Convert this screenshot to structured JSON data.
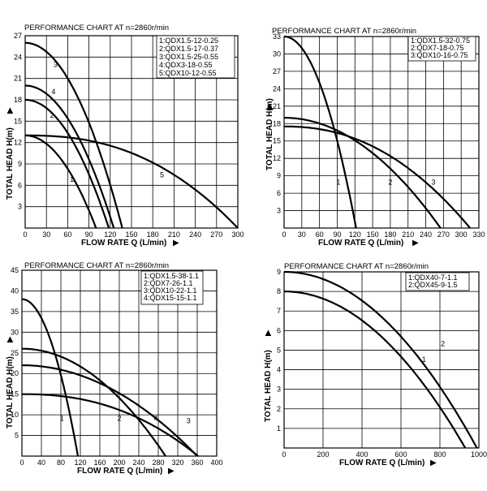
{
  "chart_data": [
    {
      "type": "line",
      "title": "PERFORMANCE CHART AT n=2860r/min",
      "xlabel": "FLOW RATE Q (L/min)",
      "ylabel": "TOTAL HEAD H(m)",
      "xlim": [
        0,
        300
      ],
      "ylim": [
        0,
        27
      ],
      "xticks": [
        0,
        30,
        60,
        90,
        120,
        150,
        180,
        210,
        240,
        270,
        300
      ],
      "yticks": [
        3,
        6,
        9,
        12,
        15,
        18,
        21,
        24,
        27
      ],
      "xtick_labels": [
        "0",
        "30",
        "60",
        "90",
        "120",
        "150",
        "180",
        "210",
        "240",
        "270",
        "300"
      ],
      "ytick_labels": [
        "3",
        "6",
        "9",
        "12",
        "15",
        "18",
        "21",
        "24",
        "27"
      ],
      "legend": [
        "1:QDX1.5-12-0.25",
        "2:QDX1.5-17-0.37",
        "3:QDX1.5-25-0.55",
        "4:QDX3-18-0.55",
        "5:QDX10-12-0.55"
      ],
      "series": [
        {
          "name": "1",
          "shutoff": 13,
          "qmax": 100,
          "exp": 2.0,
          "label_q": 66,
          "label_h": 6.5
        },
        {
          "name": "2",
          "shutoff": 18,
          "qmax": 118,
          "exp": 2.0,
          "label_q": 38,
          "label_h": 15.5
        },
        {
          "name": "3",
          "shutoff": 26,
          "qmax": 137,
          "exp": 2.0,
          "label_q": 43,
          "label_h": 22.6
        },
        {
          "name": "4",
          "shutoff": 20,
          "qmax": 125,
          "exp": 2.0,
          "label_q": 40,
          "label_h": 18.8
        },
        {
          "name": "5",
          "shutoff": 13,
          "qmax": 300,
          "exp": 2.4,
          "label_q": 193,
          "label_h": 7.1
        }
      ]
    },
    {
      "type": "line",
      "title": "PERFORMANCE CHART AT n=2860r/min",
      "xlabel": "FLOW RATE Q (L/min)",
      "ylabel": "TOTAL HEAD H(m)",
      "xlim": [
        0,
        330
      ],
      "ylim": [
        0,
        33
      ],
      "xticks": [
        0,
        30,
        60,
        90,
        120,
        150,
        180,
        210,
        240,
        270,
        300,
        330
      ],
      "yticks": [
        3,
        6,
        9,
        12,
        15,
        18,
        21,
        24,
        27,
        30,
        33
      ],
      "xtick_labels": [
        "0",
        "30",
        "60",
        "90",
        "120",
        "150",
        "180",
        "210",
        "240",
        "270",
        "300",
        "330"
      ],
      "ytick_labels": [
        "3",
        "6",
        "9",
        "12",
        "15",
        "18",
        "21",
        "24",
        "27",
        "30",
        "33"
      ],
      "legend": [
        "1:QDX1.5-32-0.75",
        "2:QDX7-18-0.75",
        "3:QDX10-16-0.75"
      ],
      "series": [
        {
          "name": "1",
          "shutoff": 33,
          "qmax": 122,
          "exp": 2.0,
          "label_q": 92,
          "label_h": 7.5
        },
        {
          "name": "2",
          "shutoff": 19,
          "qmax": 265,
          "exp": 2.0,
          "label_q": 180,
          "label_h": 7.5
        },
        {
          "name": "3",
          "shutoff": 17.5,
          "qmax": 315,
          "exp": 2.2,
          "label_q": 253,
          "label_h": 7.5
        }
      ]
    },
    {
      "type": "line",
      "title": "PERFORMANCE CHART AT n=2860r/min",
      "xlabel": "FLOW RATE Q (L/min)",
      "ylabel": "TOTAL HEAD H(m)",
      "xlim": [
        0,
        400
      ],
      "ylim": [
        0,
        45
      ],
      "xticks": [
        0,
        40,
        80,
        120,
        160,
        200,
        240,
        280,
        320,
        360,
        400
      ],
      "yticks": [
        5,
        10,
        15,
        20,
        25,
        30,
        35,
        40,
        45
      ],
      "xtick_labels": [
        "0",
        "40",
        "80",
        "120",
        "160",
        "200",
        "240",
        "280",
        "320",
        "360",
        "400"
      ],
      "ytick_labels": [
        "5",
        "10",
        "15",
        "20",
        "25",
        "30",
        "35",
        "40",
        "45"
      ],
      "legend": [
        "1:QDX1.5-38-1.1",
        "2:QDX7-26-1.1",
        "3:QDX10-22-1.1",
        "4:QDX15-15-1.1"
      ],
      "series": [
        {
          "name": "1",
          "shutoff": 38,
          "qmax": 115,
          "exp": 2.0,
          "label_q": 82,
          "label_h": 8.5
        },
        {
          "name": "2",
          "shutoff": 26,
          "qmax": 295,
          "exp": 2.0,
          "label_q": 200,
          "label_h": 8.5
        },
        {
          "name": "3",
          "shutoff": 22,
          "qmax": 360,
          "exp": 2.0,
          "label_q": 342,
          "label_h": 8.0
        },
        {
          "name": "4",
          "shutoff": 15,
          "qmax": 362,
          "exp": 2.3,
          "label_q": 275,
          "label_h": 8.5
        }
      ]
    },
    {
      "type": "line",
      "title": "PERFORMANCE CHART AT n=2860r/min",
      "xlabel": "FLOW RATE Q (L/min)",
      "ylabel": "TOTAL HEAD H(m)",
      "xlim": [
        0,
        1000
      ],
      "ylim": [
        0,
        9
      ],
      "xticks": [
        0,
        200,
        400,
        600,
        800,
        1000
      ],
      "yticks": [
        1,
        2,
        3,
        4,
        5,
        6,
        7,
        8,
        9
      ],
      "xtick_labels": [
        "0",
        "200",
        "400",
        "600",
        "800",
        "1000"
      ],
      "ytick_labels": [
        "1",
        "2",
        "3",
        "4",
        "5",
        "6",
        "7",
        "8",
        "9"
      ],
      "legend": [
        "1:QDX40-7-1.1",
        "2:QDX45-9-1.5"
      ],
      "series": [
        {
          "name": "1",
          "shutoff": 8,
          "qmax": 930,
          "exp": 2.0,
          "label_q": 718,
          "label_h": 4.4
        },
        {
          "name": "2",
          "shutoff": 9,
          "qmax": 990,
          "exp": 2.0,
          "label_q": 815,
          "label_h": 5.2
        }
      ]
    }
  ]
}
